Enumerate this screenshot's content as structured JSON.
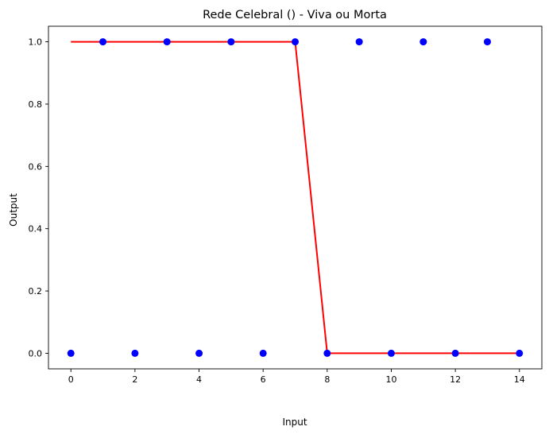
{
  "chart_data": {
    "type": "scatter",
    "title": "Rede Celebral () - Viva ou Morta",
    "xlabel": "Input",
    "ylabel": "Output",
    "xlim": [
      -0.7,
      14.7
    ],
    "ylim": [
      -0.05,
      1.05
    ],
    "xticks": [
      0,
      2,
      4,
      6,
      8,
      10,
      12,
      14
    ],
    "xtick_labels": [
      "0",
      "2",
      "4",
      "6",
      "8",
      "10",
      "12",
      "14"
    ],
    "yticks": [
      0.0,
      0.2,
      0.4,
      0.6,
      0.8,
      1.0
    ],
    "ytick_labels": [
      "0.0",
      "0.2",
      "0.4",
      "0.6",
      "0.8",
      "1.0"
    ],
    "grid": false,
    "series": [
      {
        "kind": "scatter",
        "color": "#0000ff",
        "x": [
          0,
          1,
          2,
          3,
          4,
          5,
          6,
          7,
          8,
          9,
          10,
          11,
          12,
          13,
          14
        ],
        "y": [
          0,
          1,
          0,
          1,
          0,
          1,
          0,
          1,
          0,
          1,
          0,
          1,
          0,
          1,
          0
        ]
      },
      {
        "kind": "line",
        "color": "#ff0000",
        "x": [
          0,
          1,
          2,
          3,
          4,
          5,
          6,
          7,
          8,
          9,
          10,
          11,
          12,
          13,
          14
        ],
        "y": [
          1,
          1,
          1,
          1,
          1,
          1,
          1,
          1,
          0,
          0,
          0,
          0,
          0,
          0,
          0
        ]
      }
    ]
  }
}
